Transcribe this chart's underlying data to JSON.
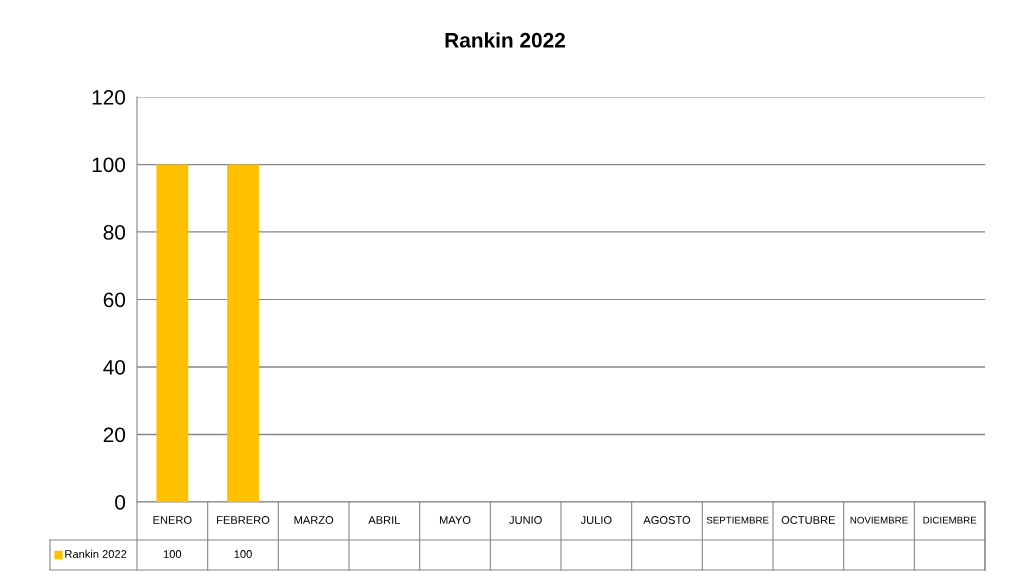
{
  "chart_data": {
    "type": "bar",
    "title": "Rankin 2022",
    "categories": [
      "ENERO",
      "FEBRERO",
      "MARZO",
      "ABRIL",
      "MAYO",
      "JUNIO",
      "JULIO",
      "AGOSTO",
      "SEPTIEMBRE",
      "OCTUBRE",
      "NOVIEMBRE",
      "DICIEMBRE"
    ],
    "series": [
      {
        "name": "Rankin 2022",
        "color": "#ffc000",
        "values": [
          100,
          100,
          null,
          null,
          null,
          null,
          null,
          null,
          null,
          null,
          null,
          null
        ]
      }
    ],
    "ylim": [
      0,
      120
    ],
    "yticks": [
      0,
      20,
      40,
      60,
      80,
      100,
      120
    ],
    "grid": "y",
    "legend": "bottom",
    "data_labels": true
  }
}
